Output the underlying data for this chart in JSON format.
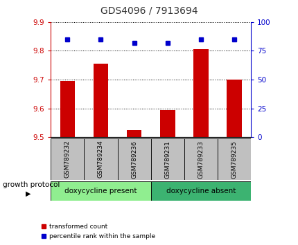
{
  "title": "GDS4096 / 7913694",
  "samples": [
    "GSM789232",
    "GSM789234",
    "GSM789236",
    "GSM789231",
    "GSM789233",
    "GSM789235"
  ],
  "transformed_counts": [
    9.695,
    9.755,
    9.525,
    9.595,
    9.805,
    9.7
  ],
  "percentile_ranks": [
    85,
    85,
    82,
    82,
    85,
    85
  ],
  "ylim_left": [
    9.5,
    9.9
  ],
  "ylim_right": [
    0,
    100
  ],
  "yticks_left": [
    9.5,
    9.6,
    9.7,
    9.8,
    9.9
  ],
  "yticks_right": [
    0,
    25,
    50,
    75,
    100
  ],
  "bar_color": "#cc0000",
  "dot_color": "#0000cc",
  "bar_bottom": 9.5,
  "group1_label": "doxycycline present",
  "group2_label": "doxycycline absent",
  "group1_indices": [
    0,
    1,
    2
  ],
  "group2_indices": [
    3,
    4,
    5
  ],
  "group_label_prefix": "growth protocol",
  "group1_color": "#90ee90",
  "group2_color": "#3cb371",
  "legend_red_label": "transformed count",
  "legend_blue_label": "percentile rank within the sample",
  "title_color": "#333333",
  "left_axis_color": "#cc0000",
  "right_axis_color": "#0000cc",
  "tick_label_area_color": "#c0c0c0"
}
